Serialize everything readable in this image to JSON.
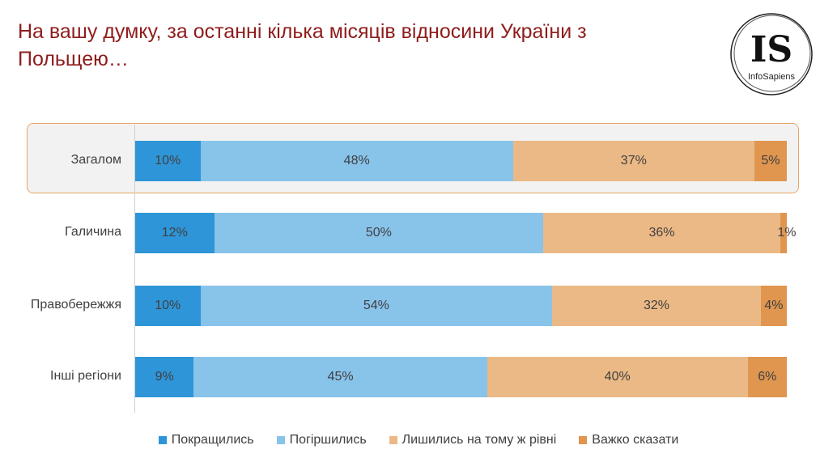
{
  "title": "На вашу думку, за останні кілька місяців відносини України з Польщею…",
  "logo": {
    "text": "IS",
    "subtext": "InfoSapiens"
  },
  "chart_data": {
    "type": "bar",
    "orientation": "horizontal-stacked-100",
    "categories": [
      "Загалом",
      "Галичина",
      "Правобережжя",
      "Інші регіони"
    ],
    "highlighted_category": "Загалом",
    "series": [
      {
        "name": "Покращились",
        "color": "#2e95d8",
        "values": [
          10,
          12,
          10,
          9
        ]
      },
      {
        "name": "Погіршились",
        "color": "#88c3ea",
        "values": [
          48,
          50,
          54,
          45
        ]
      },
      {
        "name": "Лишились на тому ж рівні",
        "color": "#ebb985",
        "values": [
          37,
          36,
          32,
          40
        ]
      },
      {
        "name": "Важко сказати",
        "color": "#e0964f",
        "values": [
          5,
          1,
          4,
          6
        ]
      }
    ],
    "unit": "%",
    "legend": "bottom"
  }
}
